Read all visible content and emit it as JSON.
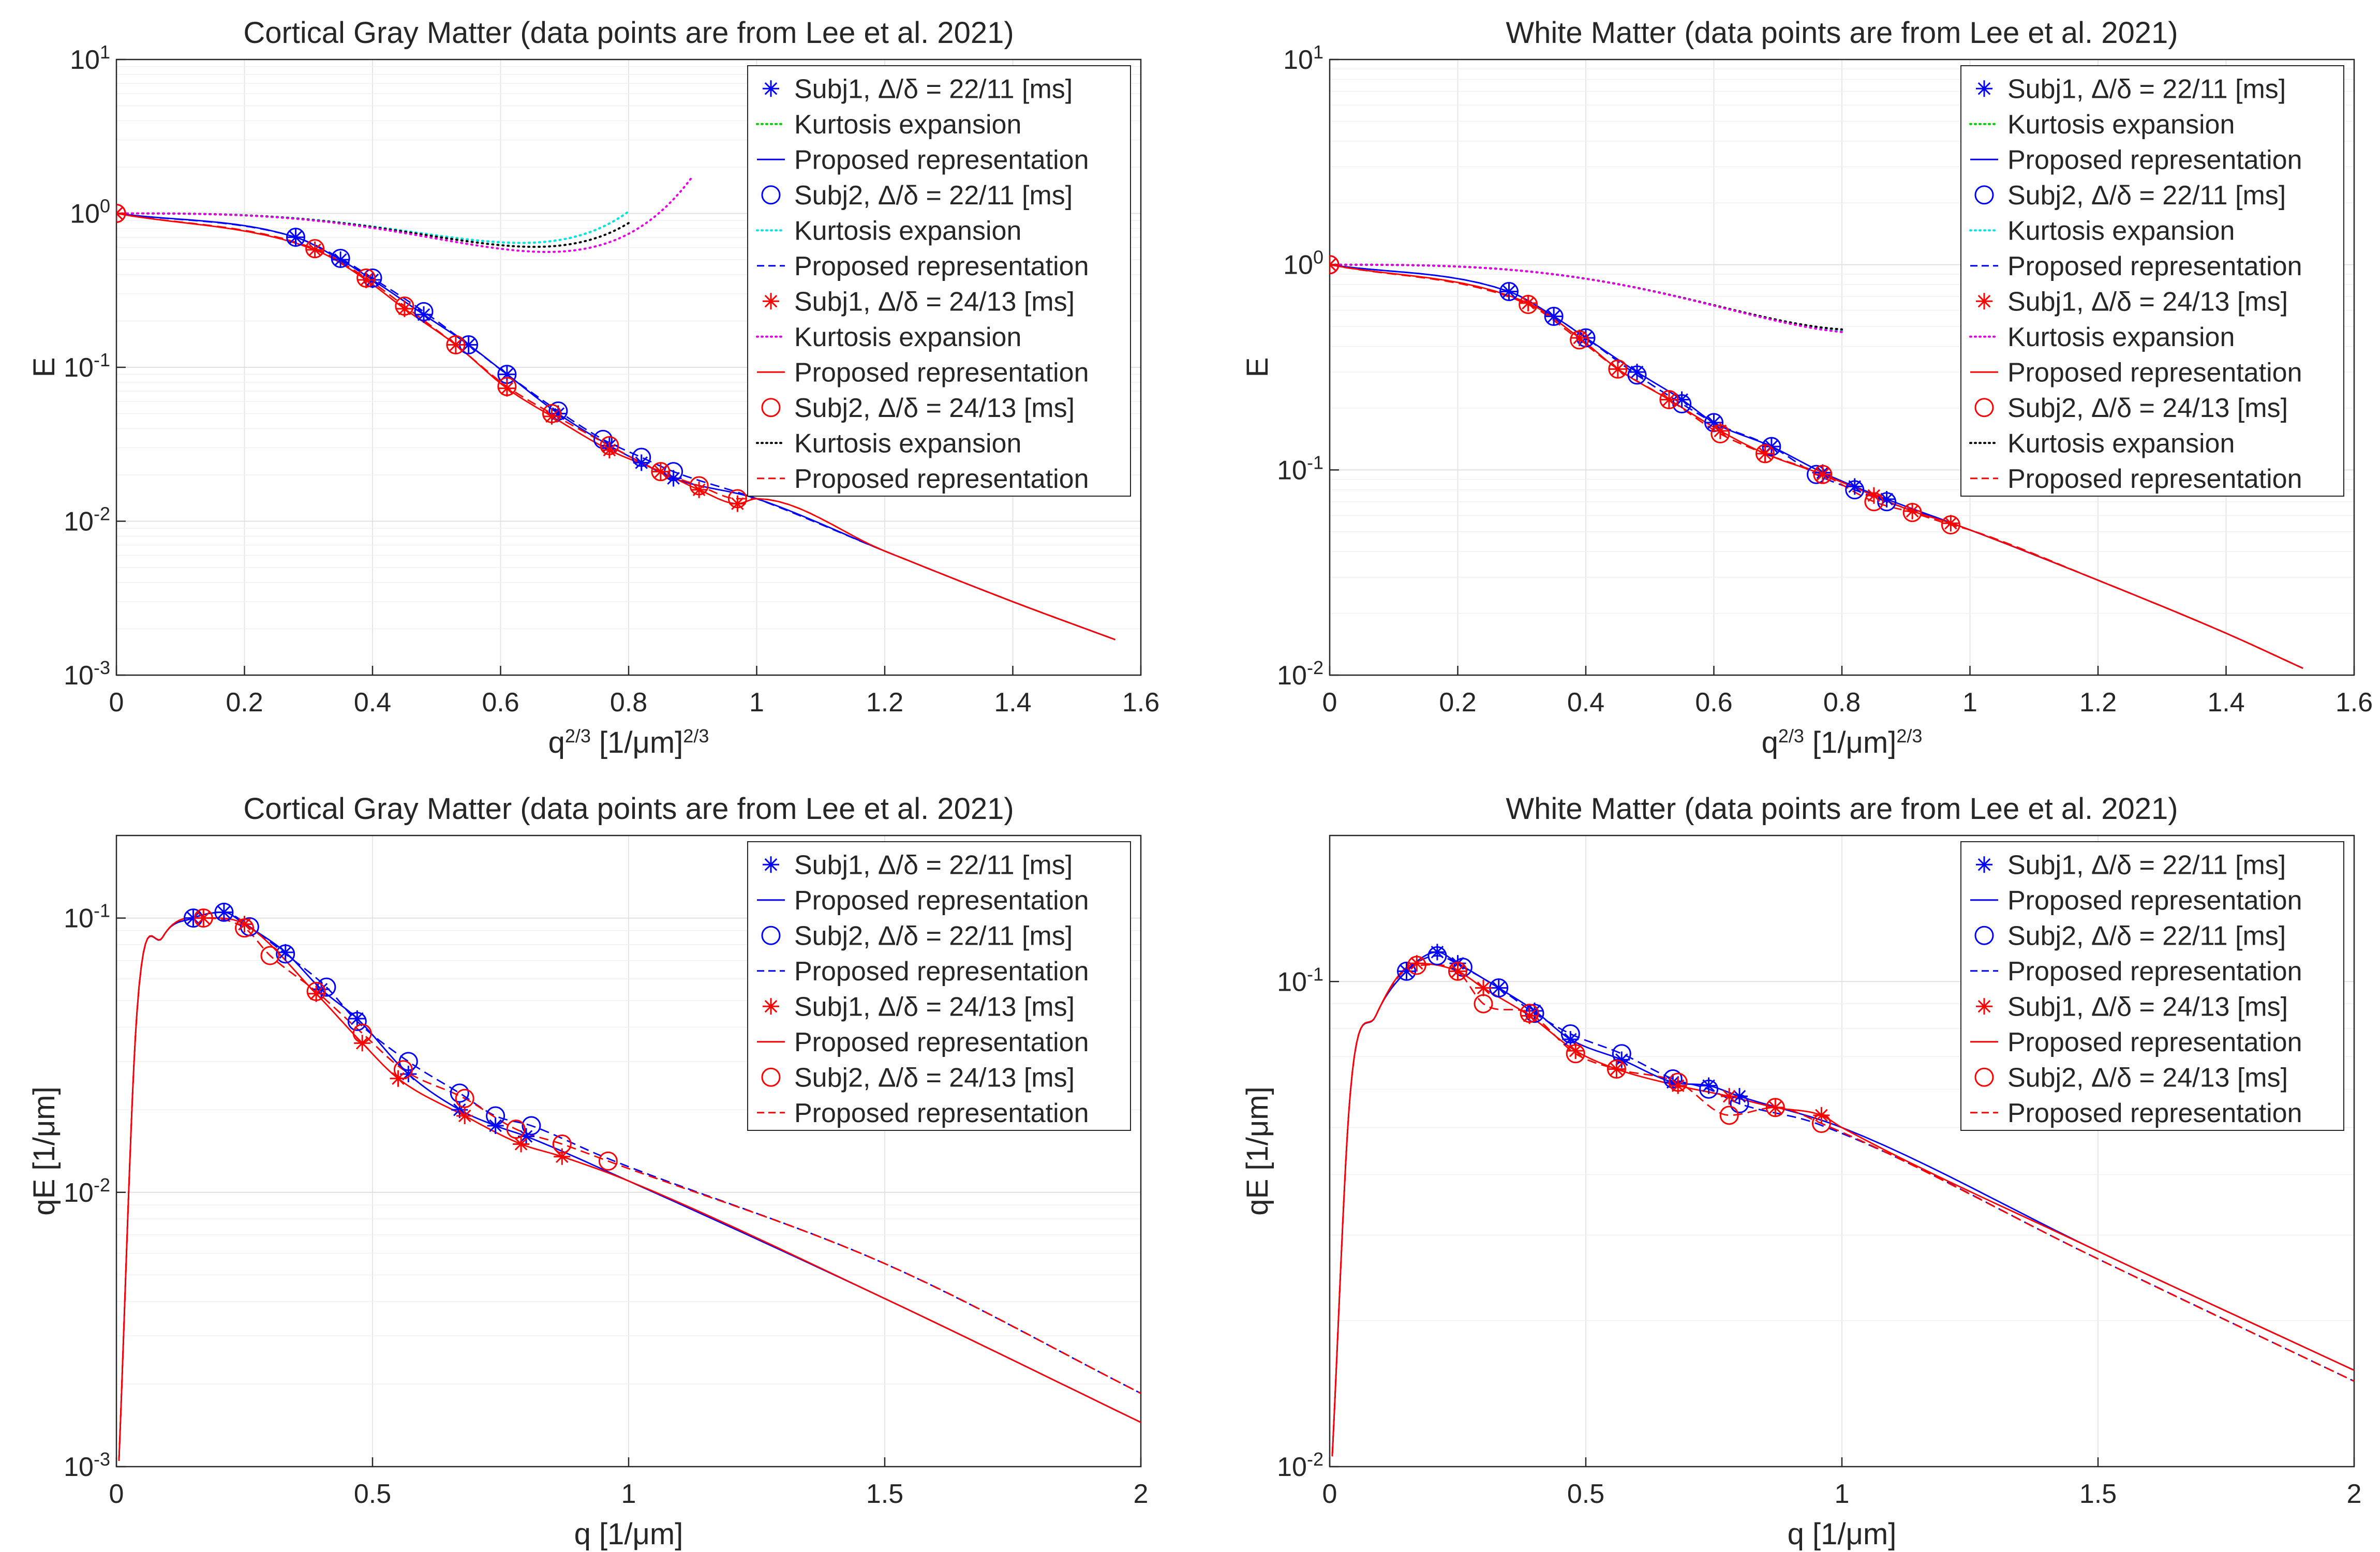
{
  "colors": {
    "blue": "#0000ff",
    "green": "#00cc00",
    "red": "#ff0000",
    "cyan": "#00e5e5",
    "magenta": "#e600e6",
    "black": "#000000"
  },
  "chart_data": [
    {
      "type": "line",
      "title": "Cortical Gray Matter (data points are from Lee et al. 2021)",
      "xlabel": {
        "base": "q",
        "sup": "2/3",
        "unit": " [1/μm]",
        "unit_sup": "2/3"
      },
      "ylabel": "E",
      "yscale": "log",
      "xlim": [
        0,
        1.6
      ],
      "ylim": [
        0.001,
        10
      ],
      "xticks": [
        "0",
        "0.2",
        "0.4",
        "0.6",
        "0.8",
        "1",
        "1.2",
        "1.4",
        "1.6"
      ],
      "yticks": [
        {
          "base": "10",
          "sup": "-3"
        },
        {
          "base": "10",
          "sup": "-2"
        },
        {
          "base": "10",
          "sup": "-1"
        },
        {
          "base": "10",
          "sup": "0"
        },
        {
          "base": "10",
          "sup": "1"
        }
      ],
      "legend": [
        "Subj1,  Δ/δ = 22/11 [ms]",
        "Kurtosis expansion",
        "Proposed representation",
        "Subj2,  Δ/δ = 22/11 [ms]",
        "Kurtosis expansion",
        "Proposed representation",
        "Subj1,  Δ/δ = 24/13 [ms]",
        "Kurtosis expansion",
        "Proposed representation",
        "Subj2,  Δ/δ = 24/13 [ms]",
        "Kurtosis expansion",
        "Proposed representation"
      ],
      "series": [
        {
          "name": "Subj1, Δ/δ = 22/11 [ms]",
          "style": "blue-star",
          "x": [
            0,
            0.28,
            0.35,
            0.4,
            0.48,
            0.55,
            0.61,
            0.69,
            0.77,
            0.82,
            0.87
          ],
          "y": [
            1.0,
            0.7,
            0.5,
            0.37,
            0.22,
            0.14,
            0.09,
            0.05,
            0.031,
            0.024,
            0.019
          ]
        },
        {
          "name": "Subj2, Δ/δ = 22/11 [ms]",
          "style": "blue-circle",
          "x": [
            0,
            0.28,
            0.35,
            0.4,
            0.48,
            0.55,
            0.61,
            0.69,
            0.76,
            0.82,
            0.87
          ],
          "y": [
            1.0,
            0.7,
            0.51,
            0.38,
            0.23,
            0.14,
            0.09,
            0.052,
            0.034,
            0.026,
            0.021
          ]
        },
        {
          "name": "Subj1, Δ/δ = 24/13 [ms]",
          "style": "red-star",
          "x": [
            0,
            0.31,
            0.39,
            0.45,
            0.53,
            0.61,
            0.68,
            0.77,
            0.85,
            0.91,
            0.97
          ],
          "y": [
            1.0,
            0.58,
            0.37,
            0.24,
            0.14,
            0.073,
            0.048,
            0.029,
            0.021,
            0.016,
            0.013
          ]
        },
        {
          "name": "Subj2, Δ/δ = 24/13 [ms]",
          "style": "red-circle",
          "x": [
            0,
            0.31,
            0.39,
            0.45,
            0.53,
            0.61,
            0.68,
            0.77,
            0.85,
            0.91,
            0.97
          ],
          "y": [
            1.0,
            0.59,
            0.38,
            0.25,
            0.14,
            0.075,
            0.05,
            0.031,
            0.021,
            0.017,
            0.014
          ]
        },
        {
          "name": "Kurtosis expansion (green)",
          "style": "green-dot",
          "D": 3.5,
          "K": 3.4,
          "xmax": 0.8
        },
        {
          "name": "Kurtosis expansion (cyan)",
          "style": "cyan-dot",
          "D": 3.5,
          "K": 3.4,
          "xmax": 0.8
        },
        {
          "name": "Kurtosis expansion (black)",
          "style": "black-dot",
          "D": 3.6,
          "K": 3.0,
          "xmax": 0.8
        },
        {
          "name": "Kurtosis expansion (magenta)",
          "style": "magenta-dot",
          "D": 3.8,
          "K": 2.6,
          "xmax": 0.9
        },
        {
          "name": "Proposed representation",
          "style": "curves",
          "tail": [
            [
              0.8,
              0.03
            ],
            [
              1.0,
              0.014
            ],
            [
              1.2,
              0.0064
            ],
            [
              1.4,
              0.003
            ],
            [
              1.56,
              0.0017
            ]
          ]
        }
      ]
    },
    {
      "type": "line",
      "title": "White Matter (data points are from Lee et al. 2021)",
      "xlabel": {
        "base": "q",
        "sup": "2/3",
        "unit": " [1/μm]",
        "unit_sup": "2/3"
      },
      "ylabel": "E",
      "yscale": "log",
      "xlim": [
        0,
        1.6
      ],
      "ylim": [
        0.01,
        10
      ],
      "xticks": [
        "0",
        "0.2",
        "0.4",
        "0.6",
        "0.8",
        "1",
        "1.2",
        "1.4",
        "1.6"
      ],
      "yticks": [
        {
          "base": "10",
          "sup": "-2"
        },
        {
          "base": "10",
          "sup": "-1"
        },
        {
          "base": "10",
          "sup": "0"
        },
        {
          "base": "10",
          "sup": "1"
        }
      ],
      "legend": [
        "Subj1,  Δ/δ = 22/11 [ms]",
        "Kurtosis expansion",
        "Proposed representation",
        "Subj2,  Δ/δ = 22/11 [ms]",
        "Kurtosis expansion",
        "Proposed representation",
        "Subj1,  Δ/δ = 24/13 [ms]",
        "Kurtosis expansion",
        "Proposed representation",
        "Subj2,  Δ/δ = 24/13 [ms]",
        "Kurtosis expansion",
        "Proposed representation"
      ],
      "series": [
        {
          "name": "Subj1, Δ/δ = 22/11 [ms]",
          "style": "blue-star",
          "x": [
            0,
            0.28,
            0.35,
            0.4,
            0.48,
            0.55,
            0.6,
            0.69,
            0.77,
            0.82,
            0.87
          ],
          "y": [
            1.0,
            0.74,
            0.56,
            0.44,
            0.3,
            0.22,
            0.17,
            0.13,
            0.097,
            0.083,
            0.072
          ]
        },
        {
          "name": "Subj2, Δ/δ = 22/11 [ms]",
          "style": "blue-circle",
          "x": [
            0,
            0.28,
            0.35,
            0.4,
            0.48,
            0.55,
            0.6,
            0.69,
            0.76,
            0.82,
            0.87
          ],
          "y": [
            1.0,
            0.74,
            0.56,
            0.44,
            0.29,
            0.21,
            0.17,
            0.13,
            0.095,
            0.08,
            0.07
          ]
        },
        {
          "name": "Subj1, Δ/δ = 24/13 [ms]",
          "style": "red-star",
          "x": [
            0,
            0.31,
            0.39,
            0.45,
            0.53,
            0.61,
            0.68,
            0.77,
            0.85,
            0.91,
            0.97
          ],
          "y": [
            1.0,
            0.65,
            0.44,
            0.31,
            0.22,
            0.155,
            0.12,
            0.095,
            0.075,
            0.063,
            0.055
          ]
        },
        {
          "name": "Subj2, Δ/δ = 24/13 [ms]",
          "style": "red-circle",
          "x": [
            0,
            0.31,
            0.39,
            0.45,
            0.53,
            0.61,
            0.68,
            0.77,
            0.85,
            0.91,
            0.97
          ],
          "y": [
            1.0,
            0.64,
            0.43,
            0.31,
            0.22,
            0.15,
            0.12,
            0.095,
            0.07,
            0.062,
            0.054
          ]
        },
        {
          "name": "Kurtosis expansion (green)",
          "style": "green-dot",
          "D": 2.6,
          "K": 2.0,
          "xmax": 0.8
        },
        {
          "name": "Kurtosis expansion (cyan)",
          "style": "cyan-dot",
          "D": 2.6,
          "K": 2.0,
          "xmax": 0.8
        },
        {
          "name": "Kurtosis expansion (black)",
          "style": "black-dot",
          "D": 2.6,
          "K": 2.05,
          "xmax": 0.8
        },
        {
          "name": "Kurtosis expansion (magenta)",
          "style": "magenta-dot",
          "D": 2.6,
          "K": 1.95,
          "xmax": 0.8
        },
        {
          "name": "Proposed representation",
          "style": "curves",
          "tail": [
            [
              0.8,
              0.09
            ],
            [
              1.0,
              0.051
            ],
            [
              1.2,
              0.029
            ],
            [
              1.4,
              0.016
            ],
            [
              1.52,
              0.0108
            ]
          ]
        }
      ]
    },
    {
      "type": "line",
      "title": "Cortical Gray Matter (data points are from Lee et al. 2021)",
      "xlabel": {
        "base": "q [1/μm]"
      },
      "ylabel": "qE [1/μm]",
      "yscale": "log",
      "xlim": [
        0,
        2
      ],
      "ylim": [
        0.001,
        0.2
      ],
      "xticks": [
        "0",
        "0.5",
        "1",
        "1.5",
        "2"
      ],
      "yticks": [
        {
          "base": "10",
          "sup": "-3"
        },
        {
          "base": "10",
          "sup": "-2"
        },
        {
          "base": "10",
          "sup": "-1"
        }
      ],
      "legend": [
        "Subj1,  Δ/δ = 22/11 [ms]",
        "Proposed representation",
        "Subj2,  Δ/δ = 22/11 [ms]",
        "Proposed representation",
        "Subj1,  Δ/δ = 24/13 [ms]",
        "Proposed representation",
        "Subj2,  Δ/δ = 24/13 [ms]",
        "Proposed representation"
      ],
      "series": [
        {
          "name": "Subj1, Δ/δ = 22/11 [ms]",
          "style": "blue-star",
          "x": [
            0.15,
            0.21,
            0.25,
            0.33,
            0.4,
            0.47,
            0.57,
            0.67,
            0.74,
            0.8
          ],
          "y": [
            0.1,
            0.105,
            0.095,
            0.075,
            0.055,
            0.043,
            0.027,
            0.02,
            0.0175,
            0.016
          ]
        },
        {
          "name": "Subj2, Δ/δ = 22/11 [ms]",
          "style": "blue-circle",
          "x": [
            0.15,
            0.21,
            0.26,
            0.33,
            0.41,
            0.47,
            0.57,
            0.67,
            0.74,
            0.81
          ],
          "y": [
            0.1,
            0.105,
            0.093,
            0.074,
            0.056,
            0.042,
            0.03,
            0.023,
            0.019,
            0.0175
          ]
        },
        {
          "name": "Subj1, Δ/δ = 24/13 [ms]",
          "style": "red-star",
          "x": [
            0.17,
            0.25,
            0.39,
            0.48,
            0.55,
            0.68,
            0.79,
            0.87
          ],
          "y": [
            0.1,
            0.095,
            0.053,
            0.035,
            0.026,
            0.019,
            0.015,
            0.0135
          ]
        },
        {
          "name": "Subj2, Δ/δ = 24/13 [ms]",
          "style": "red-circle",
          "x": [
            0.17,
            0.25,
            0.3,
            0.39,
            0.48,
            0.56,
            0.68,
            0.78,
            0.87,
            0.96
          ],
          "y": [
            0.1,
            0.092,
            0.073,
            0.054,
            0.038,
            0.028,
            0.022,
            0.017,
            0.015,
            0.013
          ]
        },
        {
          "name": "Proposed representation",
          "style": "curves",
          "tail": [
            [
              0.8,
              0.015
            ],
            [
              1.0,
              0.011
            ],
            [
              1.5,
              0.0041
            ],
            [
              2.0,
              0.00145
            ]
          ],
          "tail_dashed": [
            [
              0.95,
              0.0135
            ],
            [
              1.5,
              0.0055
            ],
            [
              2.0,
              0.00185
            ]
          ]
        }
      ]
    },
    {
      "type": "line",
      "title": "White Matter (data points are from Lee et al. 2021)",
      "xlabel": {
        "base": "q [1/μm]"
      },
      "ylabel": "qE [1/μm]",
      "yscale": "log",
      "xlim": [
        0,
        2
      ],
      "ylim": [
        0.01,
        0.2
      ],
      "xticks": [
        "0",
        "0.5",
        "1",
        "1.5",
        "2"
      ],
      "yticks": [
        {
          "base": "10",
          "sup": "-2"
        },
        {
          "base": "10",
          "sup": "-1"
        }
      ],
      "legend": [
        "Subj1,  Δ/δ = 22/11 [ms]",
        "Proposed representation",
        "Subj2,  Δ/δ = 22/11 [ms]",
        "Proposed representation",
        "Subj1,  Δ/δ = 24/13 [ms]",
        "Proposed representation",
        "Subj2,  Δ/δ = 24/13 [ms]",
        "Proposed representation"
      ],
      "series": [
        {
          "name": "Subj1, Δ/δ = 22/11 [ms]",
          "style": "blue-star",
          "x": [
            0.15,
            0.21,
            0.25,
            0.33,
            0.4,
            0.47,
            0.57,
            0.67,
            0.74,
            0.8
          ],
          "y": [
            0.105,
            0.115,
            0.109,
            0.097,
            0.087,
            0.076,
            0.069,
            0.062,
            0.061,
            0.058
          ]
        },
        {
          "name": "Subj2, Δ/δ = 22/11 [ms]",
          "style": "blue-circle",
          "x": [
            0.15,
            0.21,
            0.26,
            0.33,
            0.4,
            0.47,
            0.57,
            0.67,
            0.74,
            0.8
          ],
          "y": [
            0.105,
            0.113,
            0.107,
            0.097,
            0.086,
            0.078,
            0.071,
            0.063,
            0.06,
            0.056
          ]
        },
        {
          "name": "Subj1, Δ/δ = 24/13 [ms]",
          "style": "red-star",
          "x": [
            0.17,
            0.25,
            0.3,
            0.39,
            0.48,
            0.56,
            0.68,
            0.78,
            0.87,
            0.96
          ],
          "y": [
            0.109,
            0.105,
            0.097,
            0.085,
            0.072,
            0.066,
            0.061,
            0.058,
            0.055,
            0.053
          ]
        },
        {
          "name": "Subj2, Δ/δ = 24/13 [ms]",
          "style": "red-circle",
          "x": [
            0.17,
            0.25,
            0.3,
            0.39,
            0.48,
            0.56,
            0.68,
            0.78,
            0.87,
            0.96
          ],
          "y": [
            0.108,
            0.105,
            0.09,
            0.086,
            0.071,
            0.066,
            0.062,
            0.053,
            0.055,
            0.051
          ]
        },
        {
          "name": "Proposed representation",
          "style": "curves",
          "tail": [
            [
              0.8,
              0.058
            ],
            [
              1.0,
              0.05
            ],
            [
              1.5,
              0.0278
            ],
            [
              2.0,
              0.0158
            ]
          ],
          "tail_dashed": [
            [
              0.95,
              0.051
            ],
            [
              1.5,
              0.0268
            ],
            [
              2.0,
              0.015
            ]
          ]
        }
      ]
    }
  ]
}
